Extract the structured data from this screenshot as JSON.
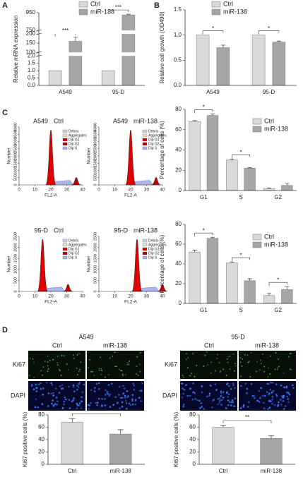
{
  "panel_labels": [
    "A",
    "B",
    "C",
    "D"
  ],
  "chart_data": [
    {
      "type": "bar",
      "y_label": "Relative mRNA expression",
      "categories": [
        "A549",
        "95-D"
      ],
      "series": [
        {
          "name": "Ctrl",
          "color": "#d9d9d9",
          "values": [
            1,
            1
          ]
        },
        {
          "name": "miR-138",
          "color": "#a6a6a6",
          "values": [
            160,
            925
          ],
          "errors": [
            22,
            8
          ]
        }
      ],
      "ysegments": [
        [
          0,
          2
        ],
        [
          100,
          200
        ],
        [
          750,
          950
        ]
      ],
      "yticks": [
        {
          "value": 0,
          "label": "0.0"
        },
        {
          "value": 0.5,
          "label": "0.5"
        },
        {
          "value": 1,
          "label": "1.0"
        },
        {
          "value": 1.5,
          "label": "1.5"
        },
        {
          "value": 2,
          "label": "2.0"
        },
        100,
        150,
        200,
        750,
        950
      ],
      "annotations": [
        "***",
        "***"
      ]
    },
    {
      "type": "bar",
      "y_label": "Relative cell growth (OD490)",
      "categories": [
        "A549",
        "95-D"
      ],
      "series": [
        {
          "name": "Ctrl",
          "color": "#d9d9d9",
          "values": [
            1,
            1
          ]
        },
        {
          "name": "miR-138",
          "color": "#a6a6a6",
          "values": [
            0.75,
            0.86
          ],
          "errors": [
            0.05,
            0.02
          ]
        }
      ],
      "ylim": [
        0,
        1.5
      ],
      "yticks": [
        {
          "value": 0,
          "label": "0.0"
        },
        {
          "value": 0.5,
          "label": "0.5"
        },
        {
          "value": 1,
          "label": "1.0"
        },
        {
          "value": 1.5,
          "label": "1.5"
        }
      ],
      "annotations": [
        "*",
        "*"
      ]
    },
    {
      "type": "bar",
      "y_label": "Percentage of cells (%)",
      "categories": [
        "G1",
        "S",
        "G2"
      ],
      "series": [
        {
          "name": "Ctrl",
          "color": "#d9d9d9",
          "values": [
            68,
            30,
            2
          ],
          "errors": [
            1,
            1,
            0.5
          ]
        },
        {
          "name": "miR-138",
          "color": "#a6a6a6",
          "values": [
            74,
            22,
            5
          ],
          "errors": [
            1.5,
            0.5,
            2
          ]
        }
      ],
      "ylim": [
        0,
        80
      ],
      "yticks": [
        0,
        20,
        40,
        60,
        80
      ],
      "annotations": [
        "*",
        "*",
        null
      ]
    },
    {
      "type": "bar",
      "y_label": "Percentage of cells (%)",
      "categories": [
        "G1",
        "S",
        "G2"
      ],
      "series": [
        {
          "name": "Ctrl",
          "color": "#d9d9d9",
          "values": [
            52,
            41,
            8
          ],
          "errors": [
            2,
            1,
            2
          ]
        },
        {
          "name": "miR-138",
          "color": "#a6a6a6",
          "values": [
            66,
            23,
            14
          ],
          "errors": [
            1,
            2,
            3
          ]
        }
      ],
      "ylim": [
        0,
        80
      ],
      "yticks": [
        0,
        20,
        40,
        60,
        80
      ],
      "annotations": [
        "*",
        "*",
        "*"
      ]
    },
    {
      "type": "bar",
      "y_label": "Ki67 positive cells (%)",
      "categories": [
        "Ctrl",
        "miR-138"
      ],
      "values": [
        68,
        49
      ],
      "errors": [
        6,
        7
      ],
      "colors": [
        "#d9d9d9",
        "#a6a6a6"
      ],
      "ylim": [
        0,
        80
      ],
      "yticks": [
        0,
        20,
        40,
        60,
        80
      ],
      "annotation": "*"
    },
    {
      "type": "bar",
      "y_label": "Ki67 positive cells (%)",
      "categories": [
        "Ctrl",
        "miR-138"
      ],
      "values": [
        60,
        42
      ],
      "errors": [
        3,
        4
      ],
      "colors": [
        "#d9d9d9",
        "#a6a6a6"
      ],
      "ylim": [
        0,
        80
      ],
      "yticks": [
        0,
        20,
        40,
        60,
        80
      ],
      "annotation": "**"
    }
  ],
  "flow": {
    "x_label": "FL2-A",
    "y_label": "Number",
    "xlim": [
      0,
      40
    ],
    "xticks": [
      0,
      10,
      20,
      30,
      40
    ],
    "legend": [
      "Debris",
      "Aggregates",
      "Dip G1",
      "Dip G2",
      "Dip S"
    ],
    "plots": [
      {
        "cell": "A549",
        "condition": "Ctrl",
        "ylim": [
          0,
          4000
        ],
        "yticks": [
          0,
          500,
          1000,
          1500,
          2000,
          2500,
          3000,
          3500,
          4000
        ]
      },
      {
        "cell": "A549",
        "condition": "miR-138",
        "ylim": [
          0,
          4000
        ],
        "yticks": [
          0,
          500,
          1000,
          1500,
          2000,
          2500,
          3000,
          3500,
          4000
        ]
      },
      {
        "cell": "95-D",
        "condition": "Ctrl",
        "ylim": [
          0,
          2500
        ],
        "yticks": [
          0,
          500,
          1000,
          1500,
          2000,
          2500
        ]
      },
      {
        "cell": "95-D",
        "condition": "miR-138",
        "ylim": [
          0,
          2500
        ],
        "yticks": [
          0,
          500,
          1000,
          1500,
          2000,
          2500
        ]
      }
    ]
  },
  "microscopy": {
    "groups": [
      "A549",
      "95-D"
    ],
    "columns": [
      "Ctrl",
      "miR-138"
    ],
    "rows": [
      "Ki67",
      "DAPI"
    ]
  }
}
